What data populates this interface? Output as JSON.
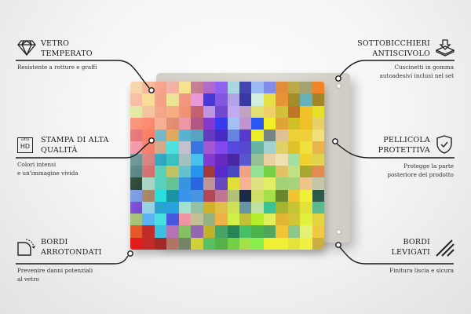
{
  "features": {
    "tempered_glass": {
      "title_line1": "VETRO",
      "title_line2": "TEMPERATO",
      "description": "Resistente a rotture e graffi",
      "icon": "diamond-icon"
    },
    "hd_print": {
      "title_line1": "STAMPA DI ALTA",
      "title_line2": "QUALITÀ",
      "description_line1": "Colori intensi",
      "description_line2": "e un'immagine vivida",
      "icon": "ultra-hd-icon",
      "icon_text_small": "ultra",
      "icon_text_large": "HD"
    },
    "rounded_edges": {
      "title_line1": "BORDI",
      "title_line2": "ARROTONDATI",
      "description_line1": "Prevenire danni potenziali",
      "description_line2": "al vetro",
      "icon": "rounded-corner-icon"
    },
    "non_slip": {
      "title_line1": "SOTTOBICCHIERI",
      "title_line2": "ANTISCIVOLO",
      "description_line1": "Cuscinetti in gomma",
      "description_line2": "autoadesivi inclusi nel set",
      "icon": "non-slip-pad-icon"
    },
    "protective_film": {
      "title_line1": "PELLICOLA",
      "title_line2": "PROTETTIVA",
      "description_line1": "Protegge la parte",
      "description_line2": "posteriore del prodotto",
      "icon": "shield-check-icon"
    },
    "smooth_edges": {
      "title_line1": "BORDI",
      "title_line2": "LEVIGATI",
      "description": "Finitura liscia e sicura",
      "icon": "smooth-edge-hatch-icon"
    }
  },
  "colors": {
    "line": "#1a1a1a",
    "plate": "#d6d4cb"
  },
  "mosaic_rows": [
    [
      "#f4c080",
      "#f59a70",
      "#f4886a",
      "#f2a090",
      "#f7e07e",
      "#c0708a",
      "#b060c8",
      "#8c5cf0",
      "#a8d8e0",
      "#3c3cb0",
      "#98b8f4",
      "#7c88e8",
      "#e28a34",
      "#b8a840",
      "#a0a06c",
      "#f28020"
    ],
    [
      "#f5a07c",
      "#f6d070",
      "#f48868",
      "#e8e080",
      "#f08870",
      "#e890d8",
      "#4030d8",
      "#8050e0",
      "#b0a0e8",
      "#3030a0",
      "#d0f0e0",
      "#e8e040",
      "#e89030",
      "#a08820",
      "#60b0b8",
      "#a08020"
    ],
    [
      "#d8e080",
      "#f0b080",
      "#f49070",
      "#f4a070",
      "#f08868",
      "#c05868",
      "#c090e0",
      "#7040d0",
      "#c0a8f0",
      "#c0a0c0",
      "#e0e070",
      "#f0d060",
      "#d0c030",
      "#c07020",
      "#f0c020",
      "#e8e020"
    ],
    [
      "#f87050",
      "#f86a48",
      "#f8a080",
      "#e08060",
      "#f090a0",
      "#b05080",
      "#8030d0",
      "#3030f0",
      "#a0c0f8",
      "#c090d0",
      "#2050f0",
      "#f0f020",
      "#e0a030",
      "#d0c020",
      "#f0c020",
      "#e8d060"
    ],
    [
      "#e05050",
      "#f86040",
      "#60b0c0",
      "#e0a050",
      "#50b0d0",
      "#50a0c0",
      "#6030c0",
      "#4020c0",
      "#6080e0",
      "#5030d0",
      "#f0f020",
      "#708080",
      "#e0c090",
      "#f0d030",
      "#f0d030",
      "#f0e070"
    ],
    [
      "#f08090",
      "#f06850",
      "#d0a080",
      "#40e0e0",
      "#c0c0d0",
      "#3070e0",
      "#a050d0",
      "#8040f0",
      "#5040e0",
      "#5040d0",
      "#60b0a0",
      "#a0d0d0",
      "#e0d060",
      "#e0c020",
      "#f0e030",
      "#e8b040"
    ],
    [
      "#508080",
      "#d07070",
      "#20a0c0",
      "#30c0c0",
      "#a0c0c0",
      "#40c0f0",
      "#8030d0",
      "#6020c0",
      "#4020a0",
      "#5050d0",
      "#90c090",
      "#e8d0a0",
      "#f0e0b0",
      "#a0e0a0",
      "#f0d020",
      "#e0d040"
    ],
    [
      "#407070",
      "#d06060",
      "#50d0b0",
      "#c0c060",
      "#60c0d0",
      "#2090f0",
      "#a03030",
      "#5020d0",
      "#4040c0",
      "#f0a080",
      "#90e090",
      "#70d040",
      "#e0c060",
      "#c0e080",
      "#a0a020",
      "#e08040"
    ],
    [
      "#103020",
      "#a0d0c0",
      "#50d0c0",
      "#60c090",
      "#3090e0",
      "#2060e0",
      "#c09090",
      "#6040c0",
      "#e0e030",
      "#f8b090",
      "#e0e080",
      "#e0f060",
      "#a0d070",
      "#a0d070",
      "#f0c080",
      "#c0c0a0"
    ],
    [
      "#7090e0",
      "#a08060",
      "#20e0e0",
      "#1090a0",
      "#3090f0",
      "#4090e0",
      "#b04050",
      "#c07090",
      "#b0c070",
      "#102040",
      "#d0e060",
      "#a0e040",
      "#608020",
      "#f0c020",
      "#f0f020",
      "#104030"
    ],
    [
      "#7040d0",
      "#90d0e0",
      "#20a0d0",
      "#20a0e0",
      "#a0e0d0",
      "#90c0a0",
      "#d0b020",
      "#e0c040",
      "#d0e050",
      "#6090a0",
      "#c0e0a0",
      "#30c090",
      "#a0b020",
      "#c0c020",
      "#e0e020",
      "#40b080"
    ],
    [
      "#a0c070",
      "#50b0f0",
      "#40e0e0",
      "#4050e0",
      "#f090a0",
      "#c0c090",
      "#90b080",
      "#f0b040",
      "#d0f040",
      "#c0c030",
      "#b0f020",
      "#e0f050",
      "#e0b020",
      "#d0c020",
      "#e0f020",
      "#e0d020"
    ],
    [
      "#e05020",
      "#c02020",
      "#30c0e0",
      "#b070b0",
      "#80c060",
      "#9060b0",
      "#c0b020",
      "#40a060",
      "#208050",
      "#40c060",
      "#40b040",
      "#40a050",
      "#f0c020",
      "#80c080",
      "#e0f060",
      "#f0c020"
    ],
    [
      "#e01010",
      "#c02020",
      "#a02020",
      "#b07060",
      "#708060",
      "#d0d030",
      "#50c060",
      "#50b040",
      "#70d040",
      "#a0e040",
      "#80f040",
      "#f0f020",
      "#f0f020",
      "#e0e020",
      "#f0f020",
      "#c0a020"
    ]
  ]
}
